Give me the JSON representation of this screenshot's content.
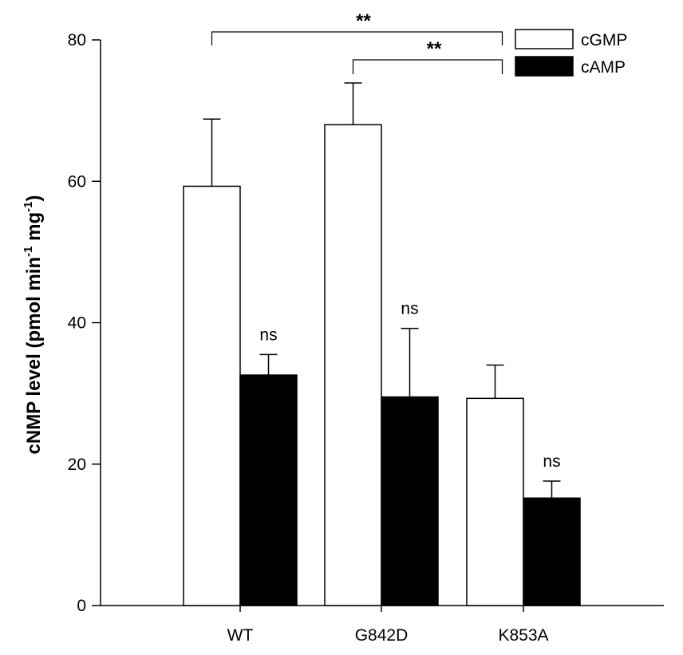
{
  "chart_data": {
    "type": "bar",
    "title": "",
    "ylabel_parts": [
      "cNMP level (pmol min",
      "-1",
      " mg",
      "-1",
      ")"
    ],
    "xlabel": "",
    "ylim": [
      0,
      80
    ],
    "yticks": [
      0,
      20,
      40,
      60,
      80
    ],
    "categories": [
      "WT",
      "G842D",
      "K853A"
    ],
    "series": [
      {
        "name": "cGMP",
        "values": [
          59.3,
          68.0,
          29.3
        ],
        "errors": [
          9.5,
          5.9,
          4.7
        ],
        "color": "#ffffff"
      },
      {
        "name": "cAMP",
        "values": [
          32.6,
          29.5,
          15.2
        ],
        "errors": [
          2.9,
          9.7,
          2.4
        ],
        "color": "#000000"
      }
    ],
    "bar_annotations": [
      {
        "series": 1,
        "category": 0,
        "text": "ns"
      },
      {
        "series": 1,
        "category": 1,
        "text": "ns"
      },
      {
        "series": 1,
        "category": 2,
        "text": "ns"
      }
    ],
    "significance": [
      {
        "from": 0,
        "to": 2,
        "text": "**"
      },
      {
        "from": 1,
        "to": 2,
        "text": "**"
      }
    ],
    "legend": {
      "position": "top-right",
      "entries": [
        "cGMP",
        "cAMP"
      ]
    },
    "grid": false
  }
}
